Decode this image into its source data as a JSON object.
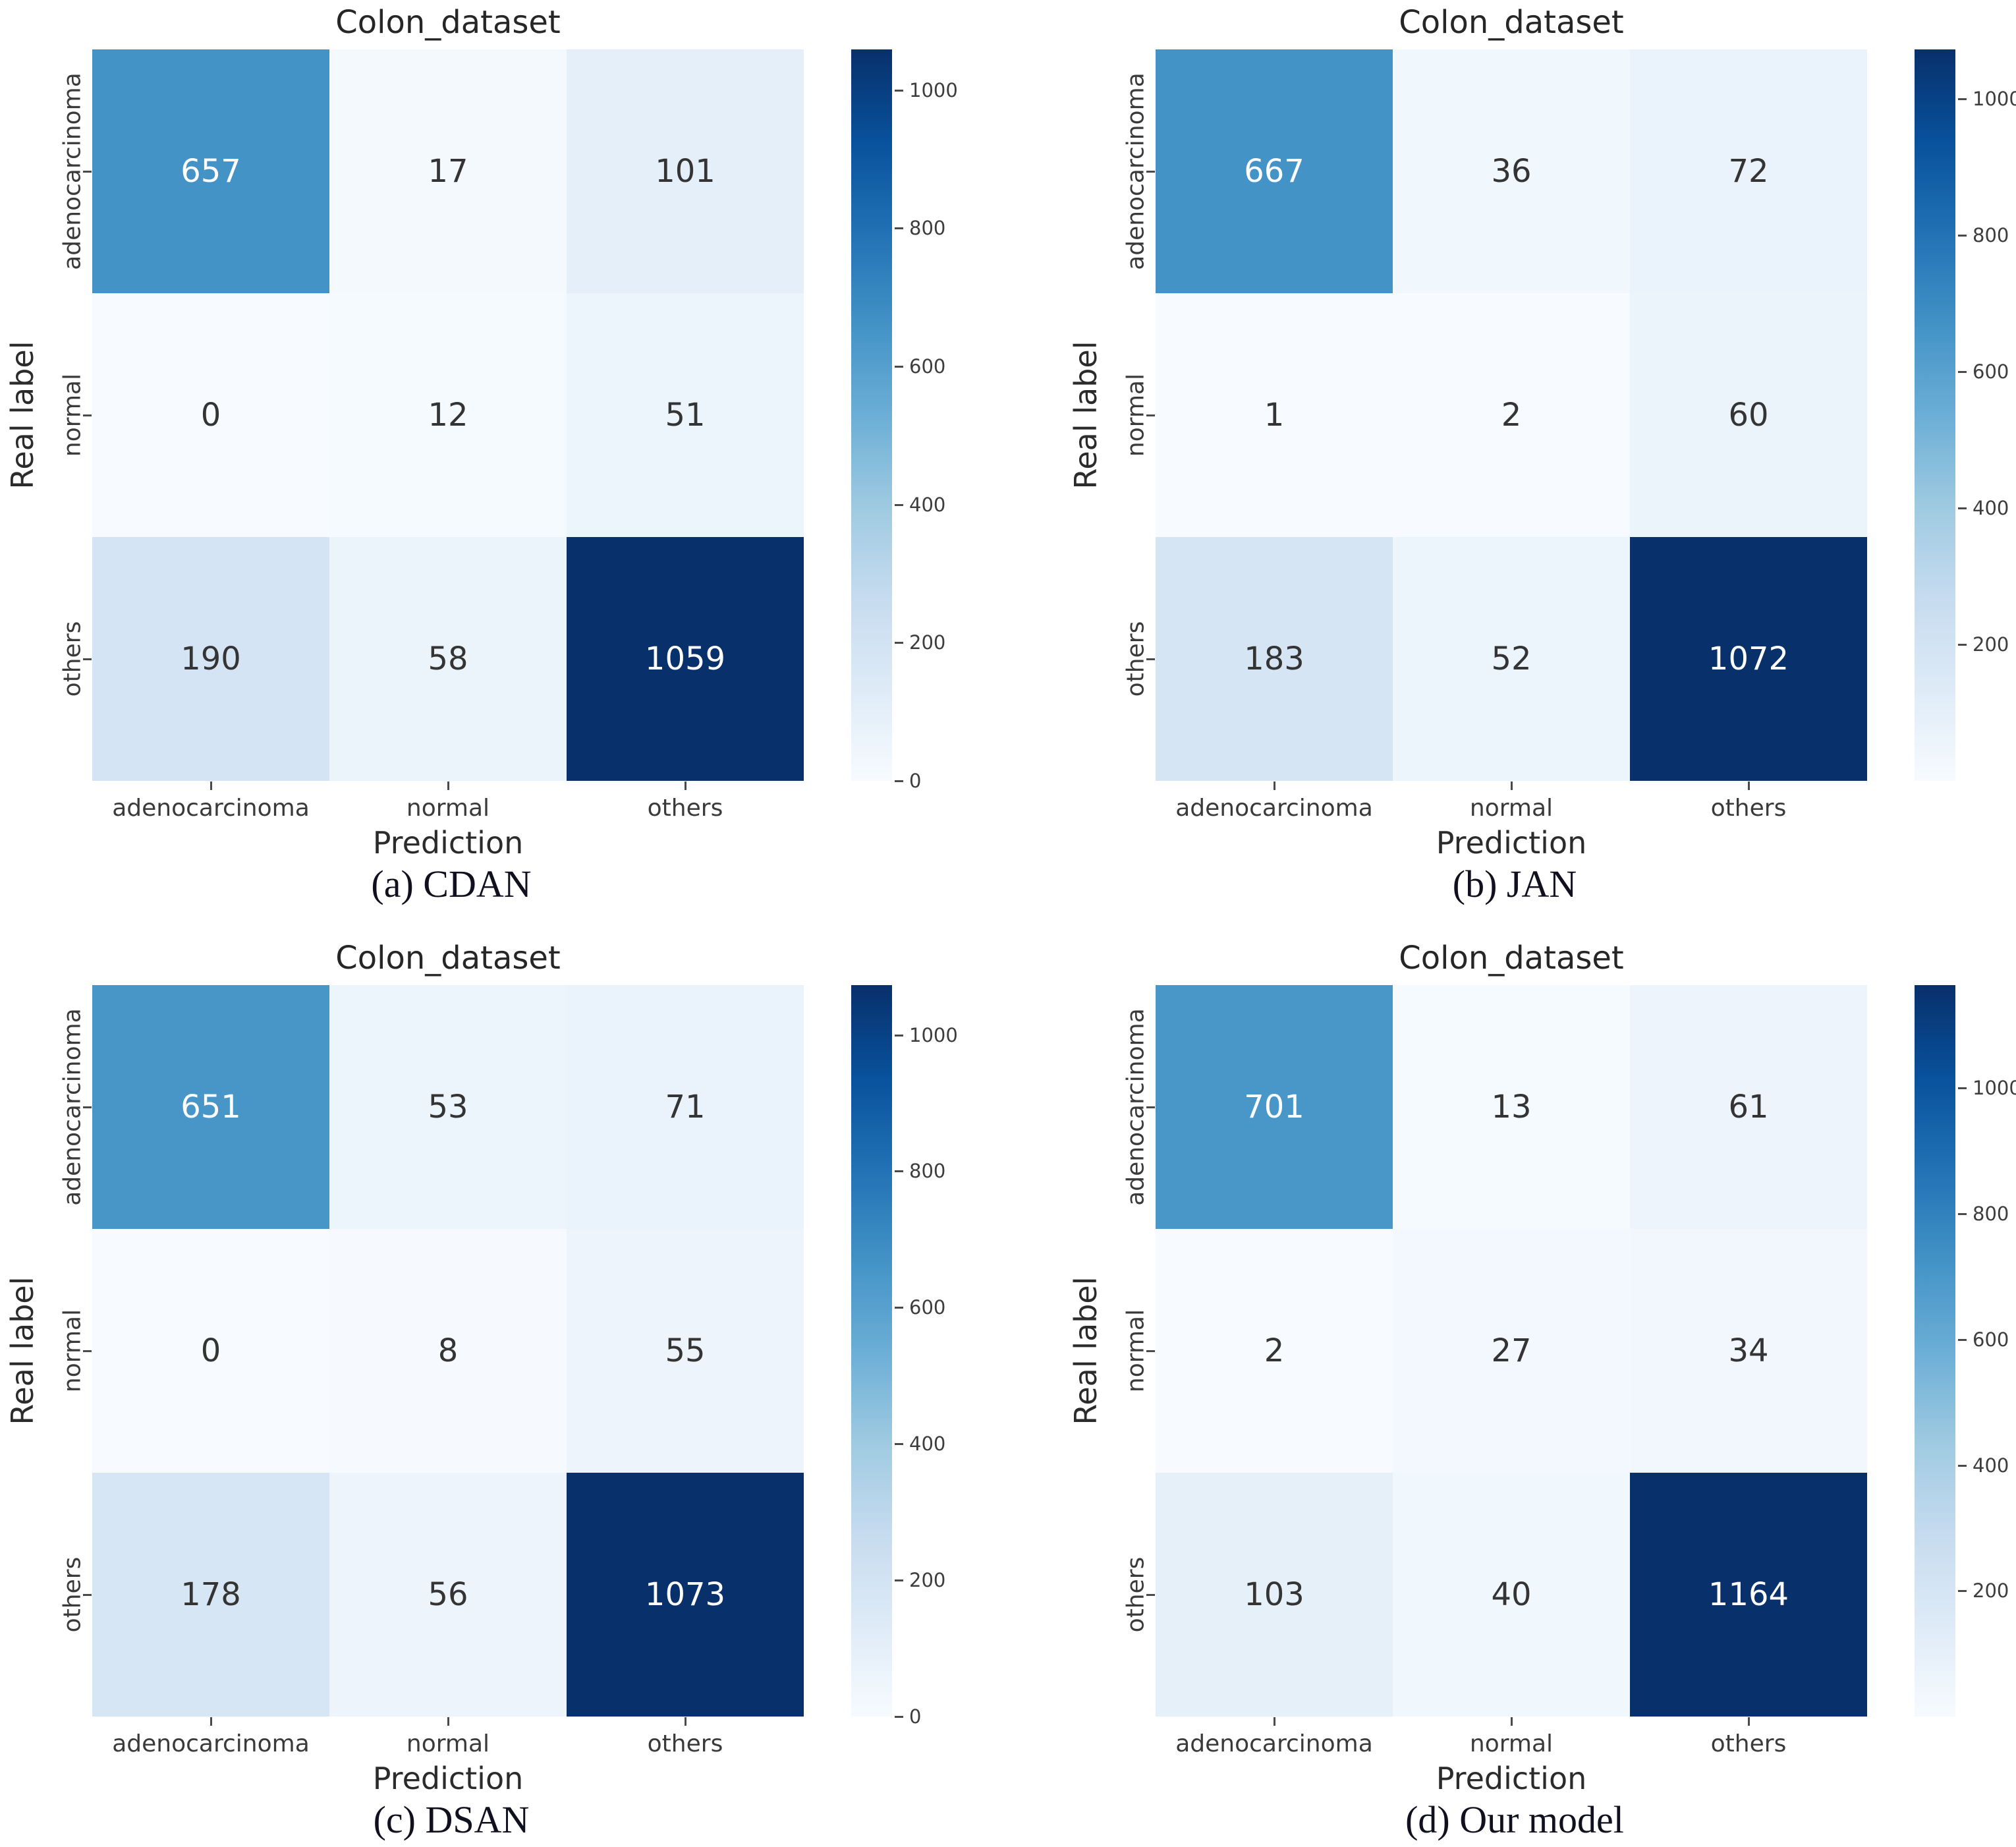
{
  "figure": {
    "background": "#ffffff",
    "colormap": "Blues",
    "colormap_dark": "#08306b",
    "colormap_light": "#f7fbff",
    "diagonal_blue": "#4493c7",
    "text_color": "#2b2b2b"
  },
  "chart_data": [
    {
      "type": "heatmap",
      "panel_label": "(a) CDAN",
      "title": "Colon_dataset",
      "xlabel": "Prediction",
      "ylabel": "Real label",
      "x_categories": [
        "adenocarcinoma",
        "normal",
        "others"
      ],
      "y_categories": [
        "adenocarcinoma",
        "normal",
        "others"
      ],
      "matrix": [
        [
          657,
          17,
          101
        ],
        [
          0,
          12,
          51
        ],
        [
          190,
          58,
          1059
        ]
      ],
      "vmax": 1059,
      "colorbar_ticks": [
        1000,
        800,
        600,
        400,
        200,
        0
      ],
      "legend_position": "right",
      "grid": false
    },
    {
      "type": "heatmap",
      "panel_label": "(b) JAN",
      "title": "Colon_dataset",
      "xlabel": "Prediction",
      "ylabel": "Real label",
      "x_categories": [
        "adenocarcinoma",
        "normal",
        "others"
      ],
      "y_categories": [
        "adenocarcinoma",
        "normal",
        "others"
      ],
      "matrix": [
        [
          667,
          36,
          72
        ],
        [
          1,
          2,
          60
        ],
        [
          183,
          52,
          1072
        ]
      ],
      "vmax": 1072,
      "colorbar_ticks": [
        1000,
        800,
        600,
        400,
        200
      ],
      "legend_position": "right",
      "grid": false
    },
    {
      "type": "heatmap",
      "panel_label": "(c) DSAN",
      "title": "Colon_dataset",
      "xlabel": "Prediction",
      "ylabel": "Real label",
      "x_categories": [
        "adenocarcinoma",
        "normal",
        "others"
      ],
      "y_categories": [
        "adenocarcinoma",
        "normal",
        "others"
      ],
      "matrix": [
        [
          651,
          53,
          71
        ],
        [
          0,
          8,
          55
        ],
        [
          178,
          56,
          1073
        ]
      ],
      "vmax": 1073,
      "colorbar_ticks": [
        1000,
        800,
        600,
        400,
        200,
        0
      ],
      "legend_position": "right",
      "grid": false
    },
    {
      "type": "heatmap",
      "panel_label": "(d) Our model",
      "title": "Colon_dataset",
      "xlabel": "Prediction",
      "ylabel": "Real label",
      "x_categories": [
        "adenocarcinoma",
        "normal",
        "others"
      ],
      "y_categories": [
        "adenocarcinoma",
        "normal",
        "others"
      ],
      "matrix": [
        [
          701,
          13,
          61
        ],
        [
          2,
          27,
          34
        ],
        [
          103,
          40,
          1164
        ]
      ],
      "vmax": 1164,
      "colorbar_ticks": [
        1000,
        800,
        600,
        400,
        200
      ],
      "legend_position": "right",
      "grid": false
    }
  ]
}
